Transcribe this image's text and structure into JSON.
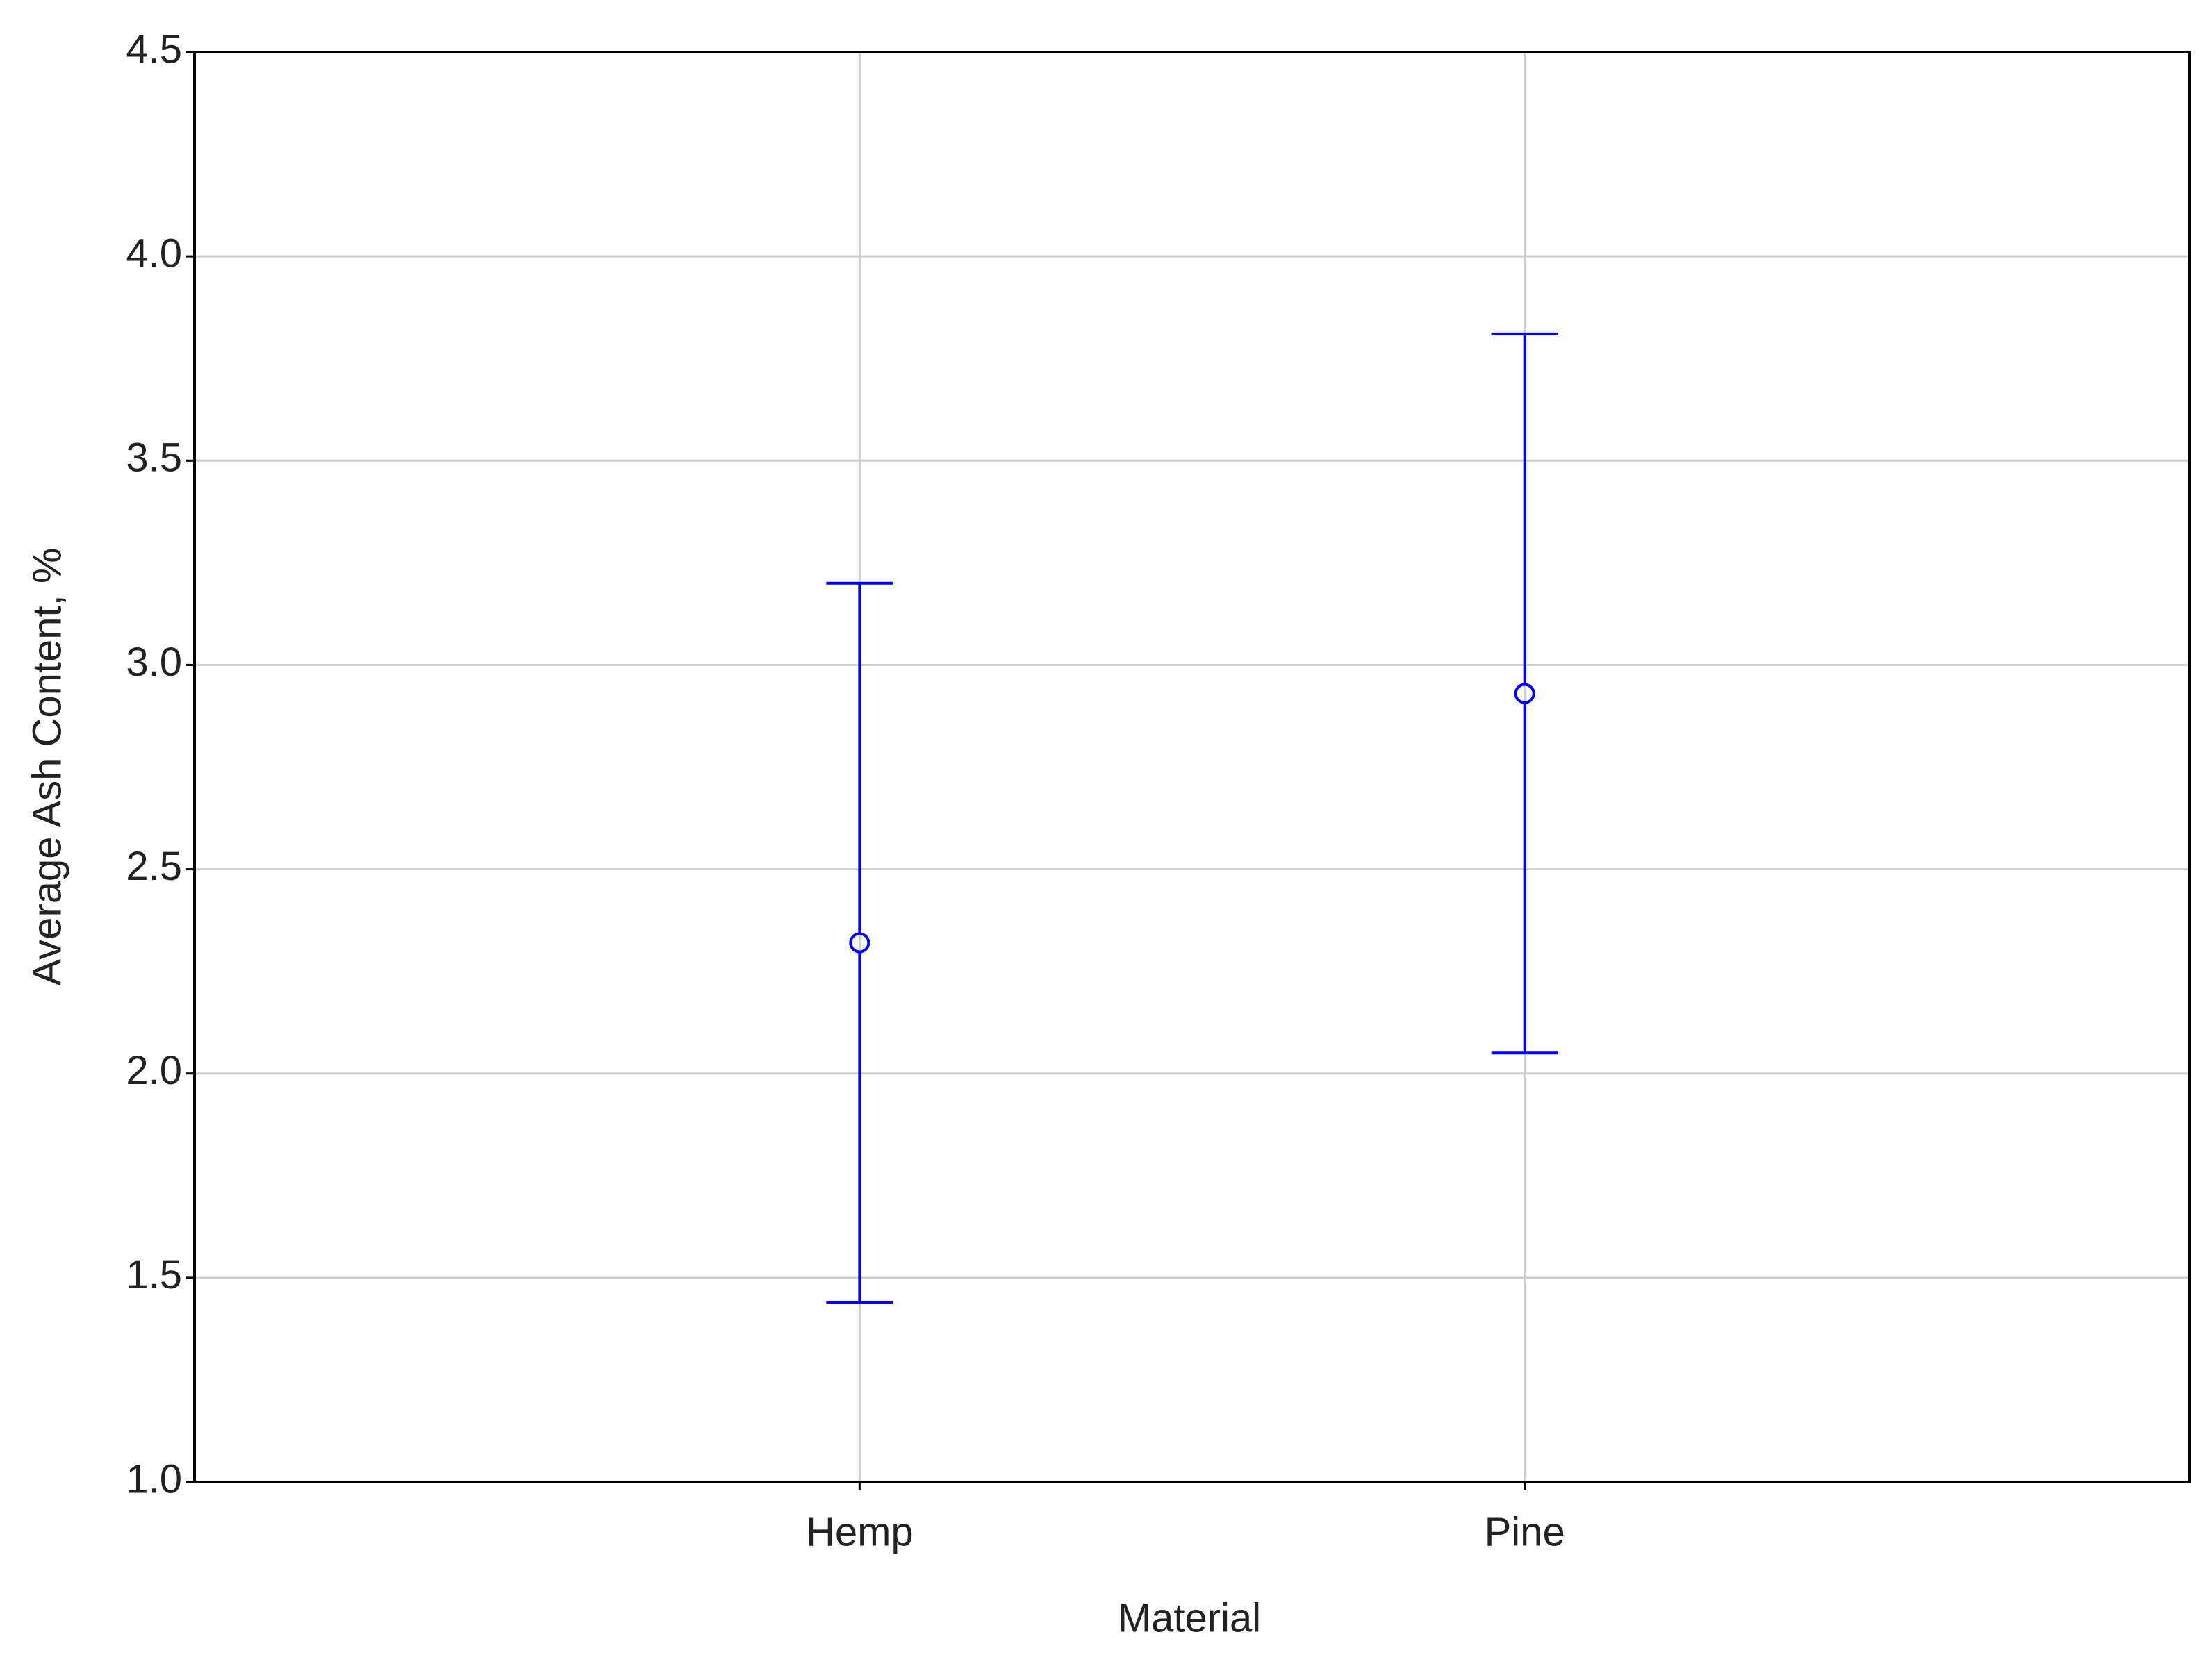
{
  "chart_data": {
    "type": "errorbar",
    "x_label": "Material",
    "y_label": "Average Ash Content, %",
    "categories": [
      "Hemp",
      "Pine"
    ],
    "values": [
      2.32,
      2.93
    ],
    "errors": [
      0.88,
      0.88
    ],
    "color": "#0000ff",
    "ylim": [
      1.0,
      4.5
    ],
    "yticks": [
      {
        "value": 1,
        "label": "1.0"
      },
      1.5,
      {
        "value": 2,
        "label": "2.0"
      },
      2.5,
      {
        "value": 3,
        "label": "3.0"
      },
      3.5,
      {
        "value": 4,
        "label": "4.0"
      },
      4.5
    ],
    "grid": true
  }
}
